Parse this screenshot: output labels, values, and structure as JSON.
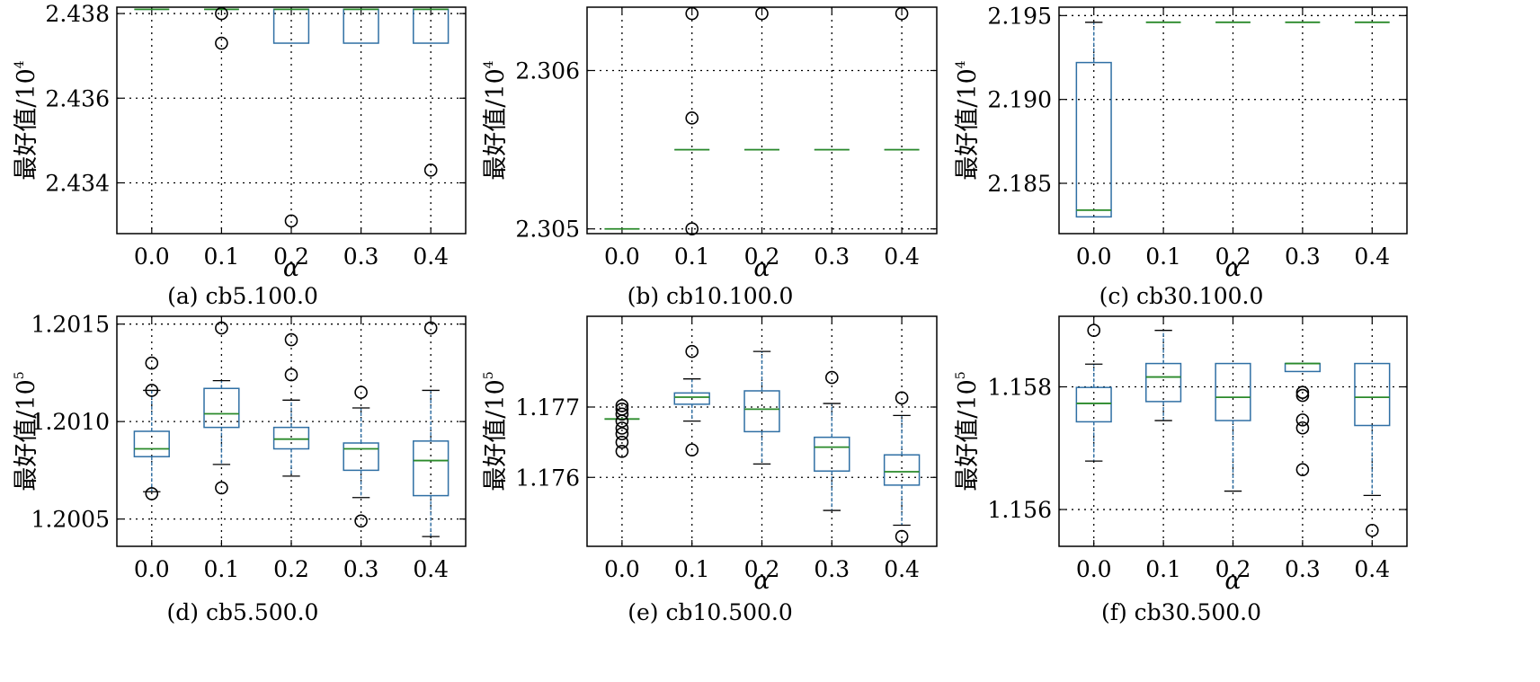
{
  "chart_data": [
    {
      "type": "box",
      "caption": "(a) cb5.100.0",
      "xlabel": "α",
      "ylabel": "最好值/10",
      "ylabel_exp": "4",
      "categories": [
        "0.0",
        "0.1",
        "0.2",
        "0.3",
        "0.4"
      ],
      "yticks": [
        "2.434",
        "2.436",
        "2.438"
      ],
      "ylim": [
        2.4328,
        2.43815
      ],
      "grid": true,
      "boxes": [
        {
          "whislo": 2.4381,
          "q1": 2.4381,
          "med": 2.4381,
          "q3": 2.4381,
          "whishi": 2.4381,
          "fliers": []
        },
        {
          "whislo": 2.4381,
          "q1": 2.4381,
          "med": 2.4381,
          "q3": 2.4381,
          "whishi": 2.4381,
          "fliers": [
            2.4373,
            2.438
          ]
        },
        {
          "whislo": 2.4373,
          "q1": 2.4373,
          "med": 2.4381,
          "q3": 2.4381,
          "whishi": 2.4381,
          "fliers": [
            2.4331
          ]
        },
        {
          "whislo": 2.4373,
          "q1": 2.4373,
          "med": 2.4381,
          "q3": 2.4381,
          "whishi": 2.4381,
          "fliers": []
        },
        {
          "whislo": 2.4373,
          "q1": 2.4373,
          "med": 2.4381,
          "q3": 2.4381,
          "whishi": 2.4381,
          "fliers": [
            2.4343
          ]
        }
      ]
    },
    {
      "type": "box",
      "caption": "(b) cb10.100.0",
      "xlabel": "α",
      "ylabel": "最好值/10",
      "ylabel_exp": "4",
      "categories": [
        "0.0",
        "0.1",
        "0.2",
        "0.3",
        "0.4"
      ],
      "yticks": [
        "2.305",
        "2.306"
      ],
      "ylim": [
        2.30497,
        2.3064
      ],
      "grid": true,
      "boxes": [
        {
          "whislo": 2.305,
          "q1": 2.305,
          "med": 2.305,
          "q3": 2.305,
          "whishi": 2.305,
          "fliers": []
        },
        {
          "whislo": 2.3055,
          "q1": 2.3055,
          "med": 2.3055,
          "q3": 2.3055,
          "whishi": 2.3055,
          "fliers": [
            2.305,
            2.3057,
            2.30636
          ]
        },
        {
          "whislo": 2.3055,
          "q1": 2.3055,
          "med": 2.3055,
          "q3": 2.3055,
          "whishi": 2.3055,
          "fliers": [
            2.30636
          ]
        },
        {
          "whislo": 2.3055,
          "q1": 2.3055,
          "med": 2.3055,
          "q3": 2.3055,
          "whishi": 2.3055,
          "fliers": []
        },
        {
          "whislo": 2.3055,
          "q1": 2.3055,
          "med": 2.3055,
          "q3": 2.3055,
          "whishi": 2.3055,
          "fliers": [
            2.30636
          ]
        }
      ]
    },
    {
      "type": "box",
      "caption": "(c) cb30.100.0",
      "xlabel": "α",
      "ylabel": "最好值/10",
      "ylabel_exp": "4",
      "categories": [
        "0.0",
        "0.1",
        "0.2",
        "0.3",
        "0.4"
      ],
      "yticks": [
        "2.185",
        "2.190",
        "2.195"
      ],
      "ylim": [
        2.182,
        2.1955
      ],
      "grid": true,
      "boxes": [
        {
          "whislo": 2.183,
          "q1": 2.183,
          "med": 2.1834,
          "q3": 2.1922,
          "whishi": 2.1946,
          "fliers": []
        },
        {
          "whislo": 2.1946,
          "q1": 2.1946,
          "med": 2.1946,
          "q3": 2.1946,
          "whishi": 2.1946,
          "fliers": []
        },
        {
          "whislo": 2.1946,
          "q1": 2.1946,
          "med": 2.1946,
          "q3": 2.1946,
          "whishi": 2.1946,
          "fliers": []
        },
        {
          "whislo": 2.1946,
          "q1": 2.1946,
          "med": 2.1946,
          "q3": 2.1946,
          "whishi": 2.1946,
          "fliers": []
        },
        {
          "whislo": 2.1946,
          "q1": 2.1946,
          "med": 2.1946,
          "q3": 2.1946,
          "whishi": 2.1946,
          "fliers": []
        }
      ]
    },
    {
      "type": "box",
      "caption": "(d) cb5.500.0",
      "xlabel": "",
      "ylabel": "最好值/10",
      "ylabel_exp": "5",
      "categories": [
        "0.0",
        "0.1",
        "0.2",
        "0.3",
        "0.4"
      ],
      "yticks": [
        "1.2005",
        "1.2010",
        "1.2015"
      ],
      "ylim": [
        1.20036,
        1.20154
      ],
      "grid": true,
      "boxes": [
        {
          "whislo": 1.20064,
          "q1": 1.20082,
          "med": 1.20086,
          "q3": 1.20095,
          "whishi": 1.20116,
          "fliers": [
            1.20063,
            1.20116,
            1.2013
          ]
        },
        {
          "whislo": 1.20078,
          "q1": 1.20097,
          "med": 1.20104,
          "q3": 1.20117,
          "whishi": 1.20121,
          "fliers": [
            1.20066,
            1.20148
          ]
        },
        {
          "whislo": 1.20072,
          "q1": 1.20086,
          "med": 1.20091,
          "q3": 1.20097,
          "whishi": 1.20111,
          "fliers": [
            1.20124,
            1.20142
          ]
        },
        {
          "whislo": 1.20061,
          "q1": 1.20075,
          "med": 1.20086,
          "q3": 1.20089,
          "whishi": 1.20107,
          "fliers": [
            1.20049,
            1.20115
          ]
        },
        {
          "whislo": 1.20041,
          "q1": 1.20062,
          "med": 1.2008,
          "q3": 1.2009,
          "whishi": 1.20116,
          "fliers": [
            1.20148
          ]
        }
      ]
    },
    {
      "type": "box",
      "caption": "(e) cb10.500.0",
      "xlabel": "α",
      "ylabel": "最好值/10",
      "ylabel_exp": "5",
      "categories": [
        "0.0",
        "0.1",
        "0.2",
        "0.3",
        "0.4"
      ],
      "yticks": [
        "1.176",
        "1.177"
      ],
      "ylim": [
        1.17502,
        1.17829
      ],
      "grid": true,
      "boxes": [
        {
          "whislo": 1.17683,
          "q1": 1.17683,
          "med": 1.17683,
          "q3": 1.17683,
          "whishi": 1.17683,
          "fliers": [
            1.17637,
            1.1765,
            1.17662,
            1.1767,
            1.1768,
            1.1769,
            1.17697,
            1.17702
          ]
        },
        {
          "whislo": 1.1768,
          "q1": 1.17704,
          "med": 1.17714,
          "q3": 1.1772,
          "whishi": 1.1774,
          "fliers": [
            1.17639,
            1.17779
          ]
        },
        {
          "whislo": 1.17619,
          "q1": 1.17665,
          "med": 1.17697,
          "q3": 1.17723,
          "whishi": 1.17779,
          "fliers": []
        },
        {
          "whislo": 1.17553,
          "q1": 1.17609,
          "med": 1.17643,
          "q3": 1.17657,
          "whishi": 1.17705,
          "fliers": [
            1.17742
          ]
        },
        {
          "whislo": 1.17532,
          "q1": 1.17589,
          "med": 1.17608,
          "q3": 1.17632,
          "whishi": 1.17688,
          "fliers": [
            1.17516,
            1.17713
          ]
        }
      ]
    },
    {
      "type": "box",
      "caption": "(f) cb30.500.0",
      "xlabel": "α",
      "ylabel": "最好值/10",
      "ylabel_exp": "5",
      "categories": [
        "0.0",
        "0.1",
        "0.2",
        "0.3",
        "0.4"
      ],
      "yticks": [
        "1.156",
        "1.158"
      ],
      "ylim": [
        1.1554,
        1.15915
      ],
      "grid": true,
      "boxes": [
        {
          "whislo": 1.15679,
          "q1": 1.15743,
          "med": 1.15773,
          "q3": 1.15799,
          "whishi": 1.15837,
          "fliers": [
            1.15892
          ]
        },
        {
          "whislo": 1.15745,
          "q1": 1.15776,
          "med": 1.15816,
          "q3": 1.15838,
          "whishi": 1.15892,
          "fliers": []
        },
        {
          "whislo": 1.1563,
          "q1": 1.15745,
          "med": 1.15783,
          "q3": 1.15838,
          "whishi": 1.15838,
          "fliers": []
        },
        {
          "whislo": 1.15825,
          "q1": 1.15825,
          "med": 1.15838,
          "q3": 1.15838,
          "whishi": 1.15838,
          "fliers": [
            1.15665,
            1.15733,
            1.15746,
            1.15786,
            1.15791
          ]
        },
        {
          "whislo": 1.15623,
          "q1": 1.15737,
          "med": 1.15783,
          "q3": 1.15838,
          "whishi": 1.15838,
          "fliers": [
            1.15566
          ]
        }
      ]
    }
  ],
  "colors": {
    "box": "#2f6fa4",
    "median": "#2a8a2a",
    "whisker_cap": "#000000",
    "grid": "#000000",
    "flier": "#000000"
  }
}
